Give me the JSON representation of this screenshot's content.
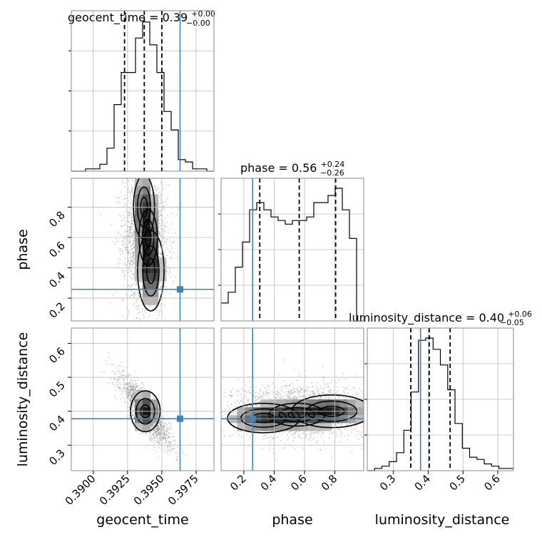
{
  "chart_data": {
    "type": "corner",
    "parameters": [
      "geocent_time",
      "phase",
      "luminosity_distance"
    ],
    "axis_labels": {
      "geocent_time": "geocent_time",
      "phase": "phase",
      "luminosity_distance": "luminosity_distance"
    },
    "ranges": {
      "geocent_time": [
        0.3884,
        0.3988
      ],
      "phase": [
        0.05,
        0.99
      ],
      "luminosity_distance": [
        0.225,
        0.645
      ]
    },
    "ticks": {
      "geocent_time": [
        0.39,
        0.3925,
        0.395,
        0.3975
      ],
      "phase": [
        0.2,
        0.4,
        0.6,
        0.8
      ],
      "luminosity_distance": [
        0.3,
        0.4,
        0.5,
        0.6
      ]
    },
    "tick_labels": {
      "geocent_time": [
        "0.3900",
        "0.3925",
        "0.3950",
        "0.3975"
      ],
      "phase": [
        "0.2",
        "0.4",
        "0.6",
        "0.8"
      ],
      "luminosity_distance": [
        "0.3",
        "0.4",
        "0.5",
        "0.6"
      ]
    },
    "truths": {
      "geocent_time": 0.39633,
      "phase": 0.258,
      "luminosity_distance": 0.378
    },
    "quantiles": {
      "geocent_time": [
        0.39228,
        0.39372,
        0.395
      ],
      "phase": [
        0.305,
        0.565,
        0.805
      ],
      "luminosity_distance": [
        0.35,
        0.403,
        0.463
      ]
    },
    "titles": {
      "geocent_time": {
        "main": "geocent_time = 0.39",
        "plus": "+0.00",
        "minus": "−0.00"
      },
      "phase": {
        "main": "phase = 0.56",
        "plus": "+0.24",
        "minus": "−0.26"
      },
      "luminosity_distance": {
        "main": "luminosity_distance = 0.40",
        "plus": "+0.06",
        "minus": "−0.05"
      }
    },
    "histograms": {
      "geocent_time": {
        "edges": [
          0.3884,
          0.38892,
          0.38944,
          0.38996,
          0.39048,
          0.391,
          0.39152,
          0.39204,
          0.39256,
          0.39308,
          0.3936,
          0.39412,
          0.39464,
          0.39516,
          0.39568,
          0.3962,
          0.39672,
          0.39724,
          0.39776,
          0.39828,
          0.3988
        ],
        "counts": [
          0,
          0,
          1,
          1,
          3,
          10,
          29,
          43,
          43,
          58,
          65,
          55,
          43,
          26,
          18,
          5,
          4,
          1,
          1,
          0
        ]
      },
      "phase": {
        "edges": [
          0.05,
          0.097,
          0.144,
          0.191,
          0.238,
          0.285,
          0.332,
          0.379,
          0.426,
          0.473,
          0.52,
          0.567,
          0.614,
          0.661,
          0.708,
          0.755,
          0.802,
          0.849,
          0.896,
          0.943,
          0.99
        ],
        "counts": [
          5,
          8,
          15,
          22,
          31,
          33,
          31,
          29,
          28,
          27,
          28,
          28,
          29,
          33,
          33,
          35,
          37,
          31,
          23,
          0
        ]
      },
      "luminosity_distance": {
        "edges": [
          0.225,
          0.246,
          0.267,
          0.288,
          0.309,
          0.33,
          0.351,
          0.372,
          0.393,
          0.414,
          0.435,
          0.456,
          0.477,
          0.498,
          0.519,
          0.54,
          0.561,
          0.582,
          0.603,
          0.624,
          0.645
        ],
        "counts": [
          0,
          1,
          2,
          4,
          8,
          18,
          35,
          58,
          59,
          54,
          47,
          36,
          21,
          10,
          6,
          5,
          3,
          2,
          1,
          1
        ]
      }
    },
    "density_2d": {
      "phase_vs_geocent_time": {
        "x_mean": 0.3938,
        "x_sd": 0.0008,
        "y_mean": 0.56,
        "y_sd": 0.22,
        "correlation": -0.1,
        "blobs": [
          {
            "x": 0.3942,
            "y": 0.38,
            "weight": 1.0
          },
          {
            "x": 0.3937,
            "y": 0.8,
            "weight": 0.8
          },
          {
            "x": 0.394,
            "y": 0.6,
            "weight": 0.7
          }
        ]
      },
      "luminosity_distance_vs_geocent_time": {
        "x_mean": 0.3938,
        "x_sd": 0.0009,
        "y_mean": 0.4,
        "y_sd": 0.05,
        "correlation": -0.85,
        "blobs": [
          {
            "x": 0.3938,
            "y": 0.4,
            "weight": 1.0
          }
        ]
      },
      "luminosity_distance_vs_phase": {
        "x_mean": 0.56,
        "x_sd": 0.22,
        "y_mean": 0.4,
        "y_sd": 0.04,
        "correlation": 0.0,
        "blobs": [
          {
            "x": 0.33,
            "y": 0.38,
            "weight": 0.9
          },
          {
            "x": 0.78,
            "y": 0.4,
            "weight": 1.0
          },
          {
            "x": 0.55,
            "y": 0.39,
            "weight": 0.7
          }
        ]
      }
    },
    "colors": {
      "truth": "#4682b4",
      "line": "#000000",
      "grid": "#bbbbbb"
    },
    "grid": true
  }
}
